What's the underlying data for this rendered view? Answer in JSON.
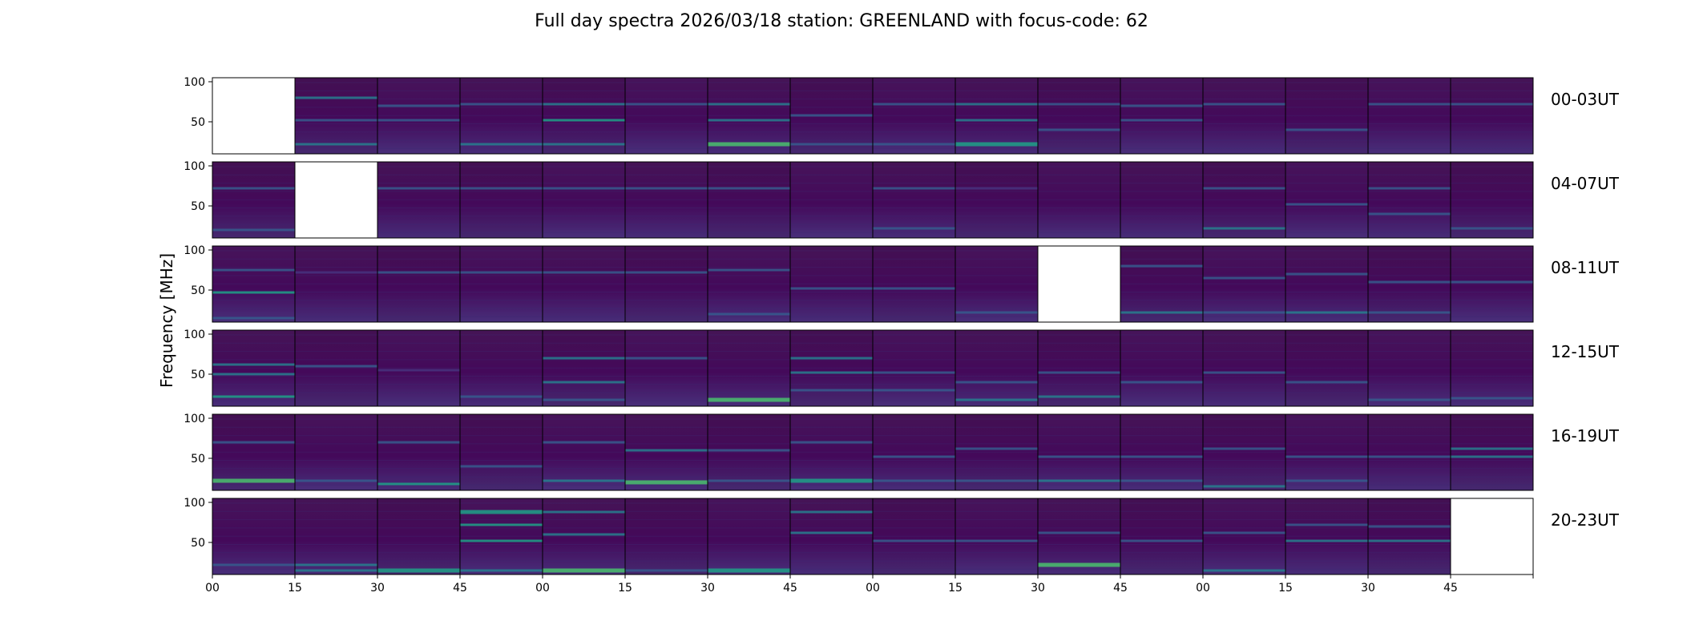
{
  "chart_data": {
    "type": "heatmap",
    "title": "Full day spectra 2026/03/18 station: GREENLAND with focus-code: 62",
    "ylabel": "Frequency [MHz]",
    "xlabel": "",
    "ylim": [
      10,
      105
    ],
    "y_ticks": [
      "100",
      "50"
    ],
    "x_ticks": [
      "00",
      "15",
      "30",
      "45",
      "00",
      "15",
      "30",
      "45",
      "00",
      "15",
      "30",
      "45",
      "00",
      "15",
      "30",
      "45",
      ""
    ],
    "colormap": [
      "#440154",
      "#46337e",
      "#365c8d",
      "#277f8e",
      "#1fa187",
      "#4ac16d",
      "#a0da39",
      "#fde725"
    ],
    "rows": [
      {
        "label": "00-03UT",
        "missing": [
          0
        ],
        "bands": [
          [
            1,
            80,
            0.5
          ],
          [
            1,
            52,
            0.35
          ],
          [
            1,
            22,
            0.45
          ],
          [
            2,
            70,
            0.4
          ],
          [
            2,
            52,
            0.3
          ],
          [
            3,
            72,
            0.4
          ],
          [
            3,
            22,
            0.55
          ],
          [
            4,
            72,
            0.45
          ],
          [
            4,
            52,
            0.6
          ],
          [
            4,
            22,
            0.55
          ],
          [
            5,
            72,
            0.3
          ],
          [
            6,
            72,
            0.45
          ],
          [
            6,
            52,
            0.5
          ],
          [
            6,
            22,
            0.75
          ],
          [
            7,
            58,
            0.35
          ],
          [
            7,
            22,
            0.4
          ],
          [
            8,
            72,
            0.35
          ],
          [
            8,
            22,
            0.3
          ],
          [
            9,
            72,
            0.5
          ],
          [
            9,
            52,
            0.55
          ],
          [
            9,
            22,
            0.65
          ],
          [
            10,
            72,
            0.4
          ],
          [
            10,
            40,
            0.35
          ],
          [
            11,
            70,
            0.4
          ],
          [
            11,
            52,
            0.35
          ],
          [
            12,
            72,
            0.3
          ],
          [
            13,
            40,
            0.3
          ],
          [
            14,
            72,
            0.3
          ],
          [
            15,
            72,
            0.4
          ]
        ]
      },
      {
        "label": "04-07UT",
        "missing": [
          1
        ],
        "bands": [
          [
            0,
            72,
            0.3
          ],
          [
            0,
            20,
            0.35
          ],
          [
            2,
            72,
            0.3
          ],
          [
            3,
            72,
            0.35
          ],
          [
            4,
            72,
            0.3
          ],
          [
            5,
            72,
            0.4
          ],
          [
            6,
            72,
            0.3
          ],
          [
            8,
            72,
            0.3
          ],
          [
            8,
            22,
            0.4
          ],
          [
            9,
            72,
            0.2
          ],
          [
            12,
            72,
            0.3
          ],
          [
            12,
            22,
            0.5
          ],
          [
            13,
            52,
            0.35
          ],
          [
            14,
            72,
            0.3
          ],
          [
            14,
            40,
            0.3
          ],
          [
            15,
            22,
            0.4
          ]
        ]
      },
      {
        "label": "08-11UT",
        "missing": [
          10
        ],
        "bands": [
          [
            0,
            75,
            0.4
          ],
          [
            0,
            47,
            0.6
          ],
          [
            0,
            15,
            0.4
          ],
          [
            1,
            72,
            0.2
          ],
          [
            2,
            72,
            0.3
          ],
          [
            3,
            72,
            0.3
          ],
          [
            4,
            72,
            0.3
          ],
          [
            5,
            72,
            0.3
          ],
          [
            6,
            75,
            0.4
          ],
          [
            6,
            20,
            0.3
          ],
          [
            7,
            52,
            0.3
          ],
          [
            8,
            52,
            0.3
          ],
          [
            9,
            22,
            0.4
          ],
          [
            11,
            80,
            0.35
          ],
          [
            11,
            22,
            0.45
          ],
          [
            12,
            65,
            0.3
          ],
          [
            12,
            22,
            0.4
          ],
          [
            13,
            70,
            0.3
          ],
          [
            13,
            22,
            0.5
          ],
          [
            14,
            60,
            0.35
          ],
          [
            14,
            22,
            0.3
          ],
          [
            15,
            60,
            0.3
          ]
        ]
      },
      {
        "label": "12-15UT",
        "missing": [],
        "bands": [
          [
            0,
            62,
            0.55
          ],
          [
            0,
            50,
            0.5
          ],
          [
            0,
            22,
            0.6
          ],
          [
            1,
            60,
            0.3
          ],
          [
            2,
            55,
            0.25
          ],
          [
            3,
            22,
            0.3
          ],
          [
            4,
            70,
            0.5
          ],
          [
            4,
            40,
            0.45
          ],
          [
            4,
            18,
            0.4
          ],
          [
            5,
            70,
            0.3
          ],
          [
            6,
            18,
            0.8
          ],
          [
            7,
            70,
            0.5
          ],
          [
            7,
            52,
            0.45
          ],
          [
            7,
            30,
            0.4
          ],
          [
            8,
            52,
            0.4
          ],
          [
            8,
            30,
            0.35
          ],
          [
            9,
            40,
            0.3
          ],
          [
            9,
            18,
            0.45
          ],
          [
            10,
            52,
            0.3
          ],
          [
            10,
            22,
            0.5
          ],
          [
            11,
            40,
            0.3
          ],
          [
            12,
            52,
            0.3
          ],
          [
            13,
            40,
            0.3
          ],
          [
            14,
            18,
            0.4
          ],
          [
            15,
            20,
            0.35
          ]
        ]
      },
      {
        "label": "16-19UT",
        "missing": [],
        "bands": [
          [
            0,
            22,
            0.75
          ],
          [
            0,
            70,
            0.35
          ],
          [
            1,
            22,
            0.35
          ],
          [
            2,
            70,
            0.3
          ],
          [
            2,
            18,
            0.6
          ],
          [
            3,
            40,
            0.3
          ],
          [
            4,
            70,
            0.35
          ],
          [
            4,
            22,
            0.45
          ],
          [
            5,
            60,
            0.5
          ],
          [
            5,
            20,
            0.8
          ],
          [
            6,
            60,
            0.35
          ],
          [
            6,
            22,
            0.4
          ],
          [
            7,
            70,
            0.3
          ],
          [
            7,
            22,
            0.65
          ],
          [
            8,
            52,
            0.3
          ],
          [
            8,
            22,
            0.4
          ],
          [
            9,
            62,
            0.4
          ],
          [
            9,
            22,
            0.35
          ],
          [
            10,
            52,
            0.4
          ],
          [
            10,
            22,
            0.45
          ],
          [
            11,
            52,
            0.35
          ],
          [
            11,
            22,
            0.4
          ],
          [
            12,
            62,
            0.4
          ],
          [
            12,
            15,
            0.5
          ],
          [
            13,
            52,
            0.3
          ],
          [
            13,
            22,
            0.4
          ],
          [
            14,
            52,
            0.3
          ],
          [
            15,
            62,
            0.5
          ],
          [
            15,
            52,
            0.55
          ]
        ]
      },
      {
        "label": "20-23UT",
        "missing": [
          15
        ],
        "bands": [
          [
            0,
            22,
            0.4
          ],
          [
            1,
            22,
            0.5
          ],
          [
            1,
            15,
            0.55
          ],
          [
            2,
            15,
            0.7
          ],
          [
            3,
            88,
            0.65
          ],
          [
            3,
            72,
            0.6
          ],
          [
            3,
            52,
            0.6
          ],
          [
            3,
            15,
            0.55
          ],
          [
            4,
            88,
            0.55
          ],
          [
            4,
            60,
            0.5
          ],
          [
            4,
            15,
            0.85
          ],
          [
            5,
            15,
            0.4
          ],
          [
            6,
            15,
            0.7
          ],
          [
            7,
            88,
            0.5
          ],
          [
            7,
            62,
            0.45
          ],
          [
            8,
            52,
            0.3
          ],
          [
            9,
            52,
            0.3
          ],
          [
            10,
            62,
            0.4
          ],
          [
            10,
            22,
            0.75
          ],
          [
            11,
            52,
            0.3
          ],
          [
            12,
            62,
            0.4
          ],
          [
            12,
            15,
            0.55
          ],
          [
            13,
            72,
            0.4
          ],
          [
            13,
            52,
            0.45
          ],
          [
            14,
            70,
            0.4
          ],
          [
            14,
            52,
            0.5
          ]
        ]
      }
    ]
  }
}
